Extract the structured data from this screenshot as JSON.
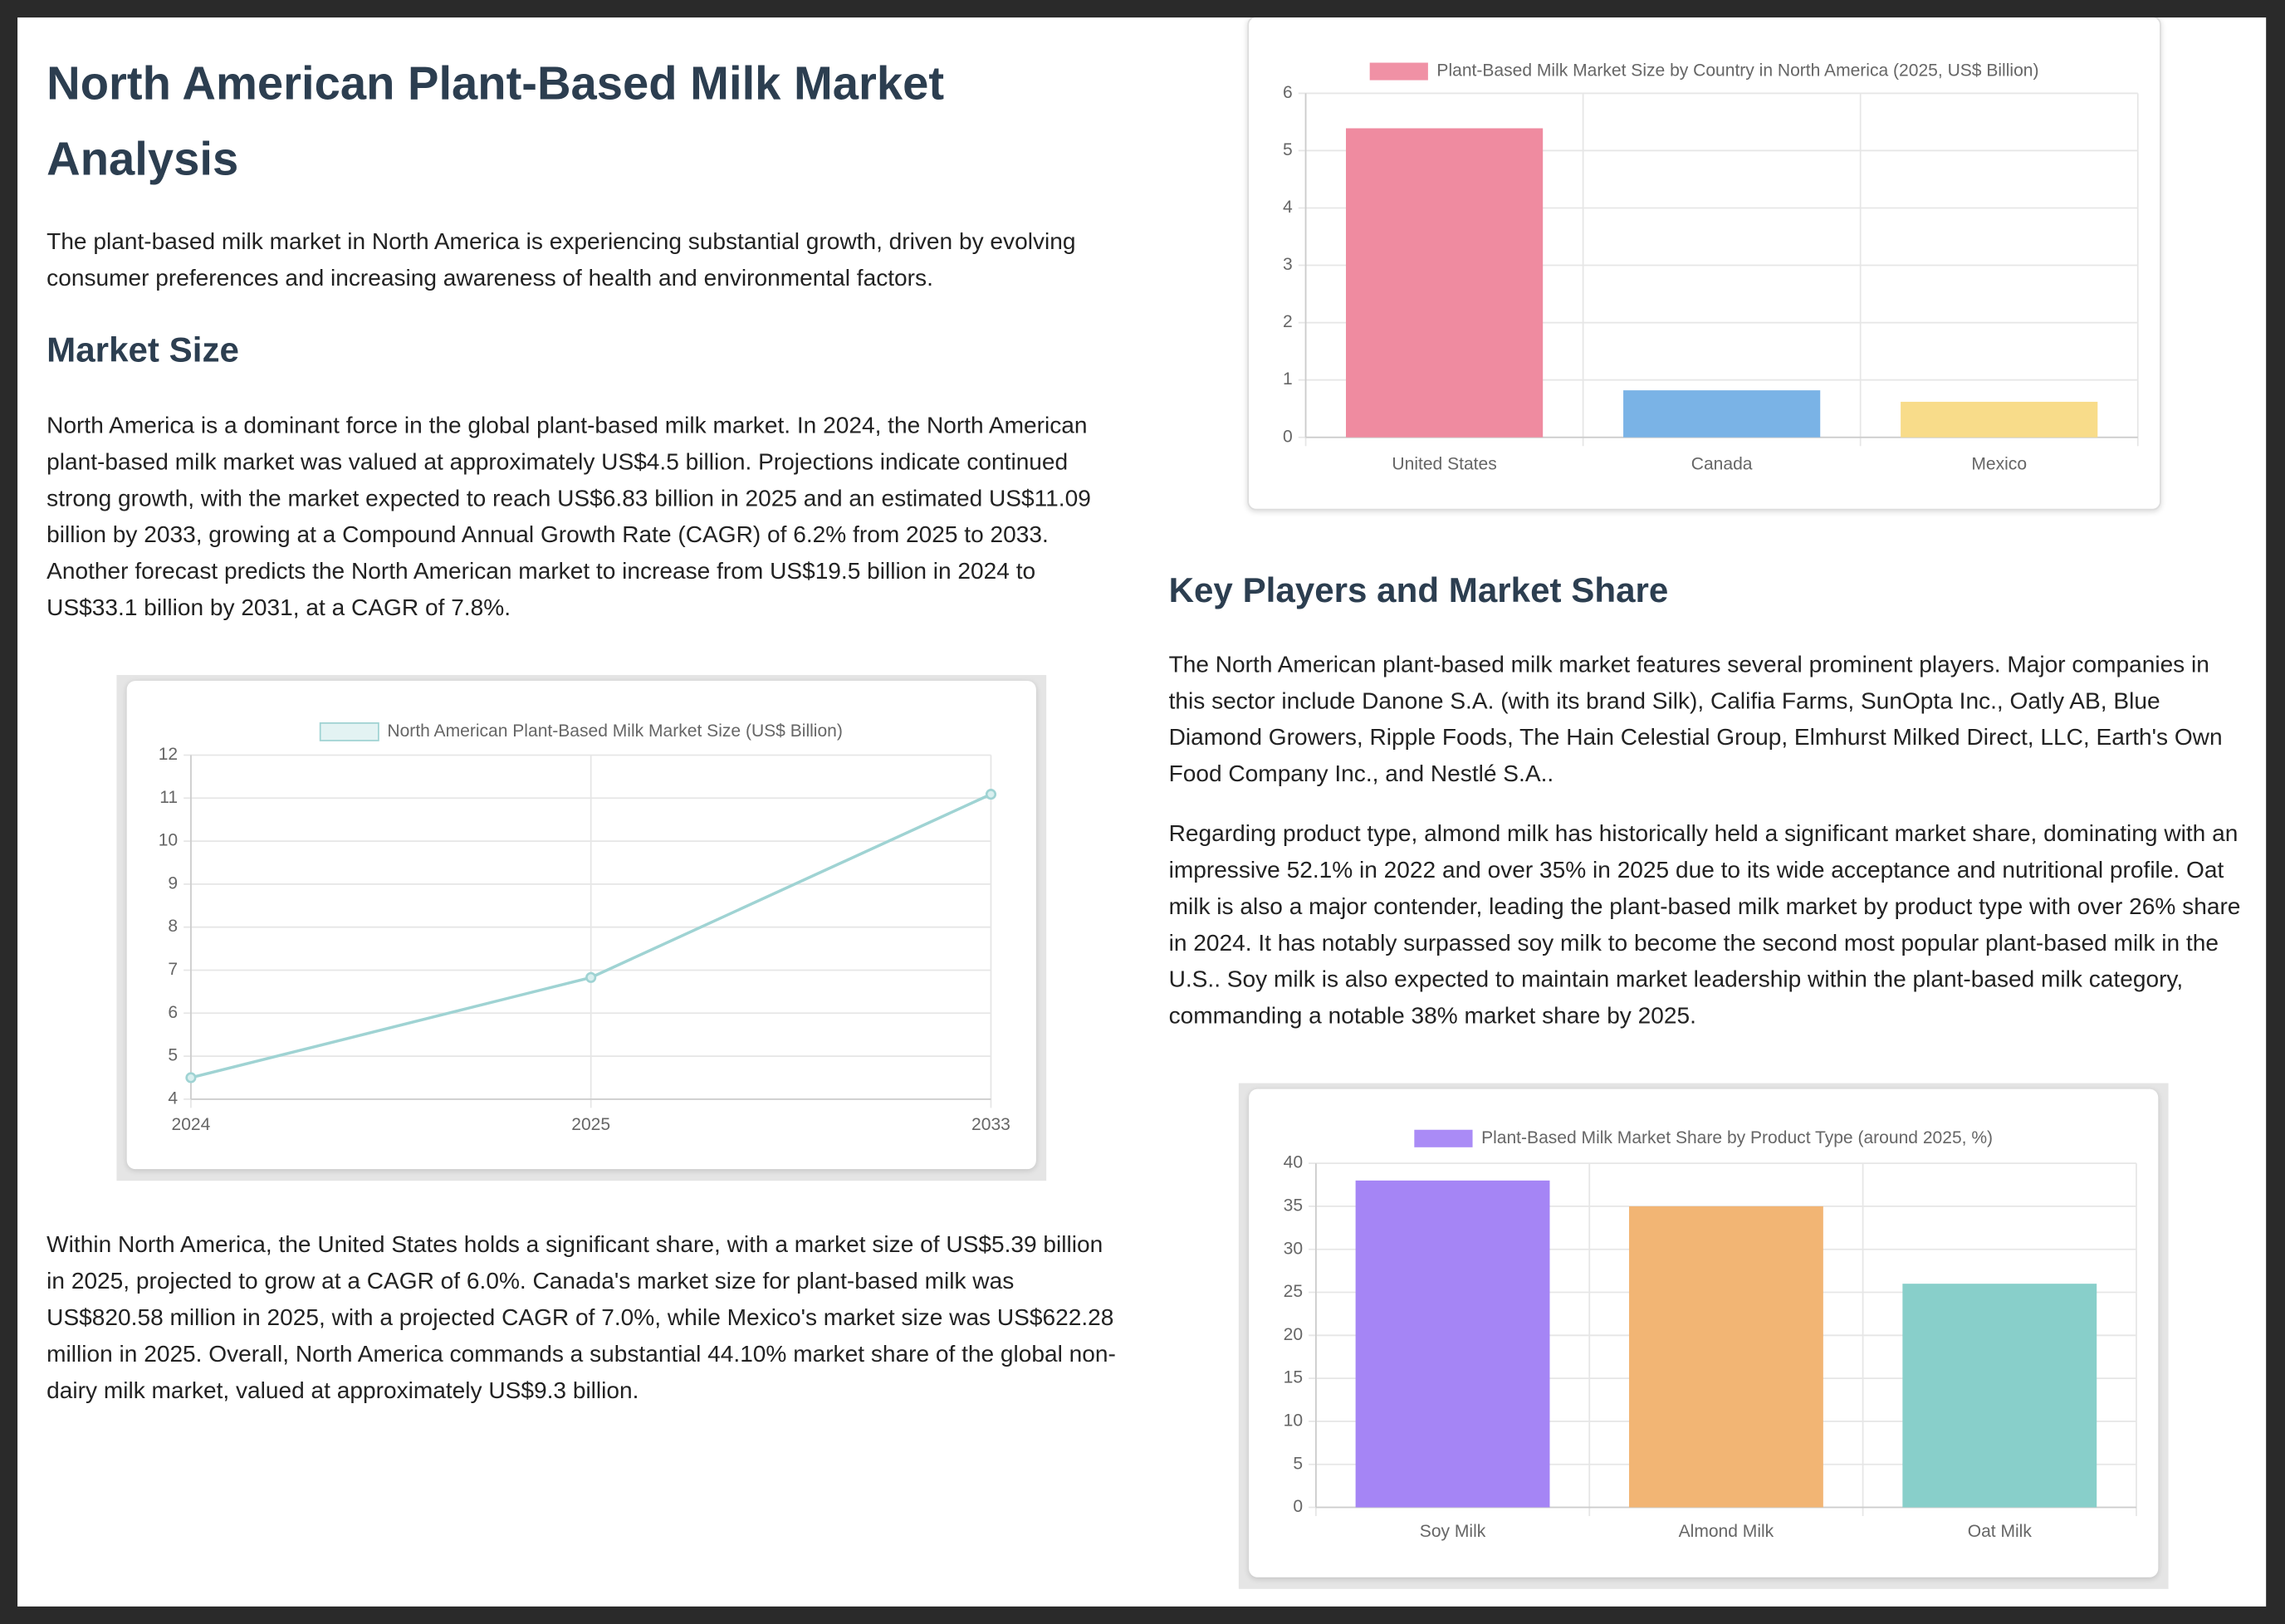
{
  "document": {
    "title": "North American Plant-Based Milk Market Analysis",
    "intro": "The plant-based milk market in North America is experiencing substantial growth, driven by evolving consumer preferences and increasing awareness of health and environmental factors.",
    "sections": [
      {
        "heading": "Market Size",
        "paragraphs": [
          "North America is a dominant force in the global plant-based milk market. In 2024, the North American plant-based milk market was valued at approximately US$4.5 billion. Projections indicate continued strong growth, with the market expected to reach US$6.83 billion in 2025 and an estimated US$11.09 billion by 2033, growing at a Compound Annual Growth Rate (CAGR) of 6.2% from 2025 to 2033. Another forecast predicts the North American market to increase from US$19.5 billion in 2024 to US$33.1 billion by 2031, at a CAGR of 7.8%.",
          "Within North America, the United States holds a significant share, with a market size of US$5.39 billion in 2025, projected to grow at a CAGR of 6.0%. Canada's market size for plant-based milk was US$820.58 million in 2025, with a projected CAGR of 7.0%, while Mexico's market size was US$622.28 million in 2025. Overall, North America commands a substantial 44.10% market share of the global non-dairy milk market, valued at approximately US$9.3 billion."
        ]
      },
      {
        "heading": "Key Players and Market Share",
        "paragraphs": [
          "The North American plant-based milk market features several prominent players. Major companies in this sector include Danone S.A. (with its brand Silk), Califia Farms, SunOpta Inc., Oatly AB, Blue Diamond Growers, Ripple Foods, The Hain Celestial Group, Elmhurst Milked Direct, LLC, Earth's Own Food Company Inc., and Nestlé S.A..",
          "Regarding product type, almond milk has historically held a significant market share, dominating with an impressive 52.1% in 2022 and over 35% in 2025 due to its wide acceptance and nutritional profile. Oat milk is also a major contender, leading the plant-based milk market by product type with over 26% share in 2024. It has notably surpassed soy milk to become the second most popular plant-based milk in the U.S.. Soy milk is also expected to maintain market leadership within the plant-based milk category, commanding a notable 38% market share by 2025."
        ]
      }
    ]
  },
  "chart_data": [
    {
      "type": "line",
      "categories": [
        "2024",
        "2025",
        "2033"
      ],
      "series": [
        {
          "name": "North American Plant-Based Milk Market Size (US$ Billion)",
          "color": "#9fd3d3",
          "values": [
            4.5,
            6.83,
            11.09
          ]
        }
      ],
      "ylim": [
        4,
        12
      ],
      "yticks": [
        4,
        5,
        6,
        7,
        8,
        9,
        10,
        11,
        12
      ],
      "grid": true
    },
    {
      "type": "bar",
      "categories": [
        "United States",
        "Canada",
        "Mexico"
      ],
      "series": [
        {
          "name": "Plant-Based Milk Market Size by Country in North America (2025, US$ Billion)",
          "colors": [
            "#ef8ba0",
            "#7ab3e6",
            "#f8dc8a"
          ],
          "values": [
            5.39,
            0.82,
            0.62
          ]
        }
      ],
      "ylim": [
        0,
        6
      ],
      "yticks": [
        0,
        1,
        2,
        3,
        4,
        5,
        6
      ],
      "grid": true
    },
    {
      "type": "bar",
      "categories": [
        "Soy Milk",
        "Almond Milk",
        "Oat Milk"
      ],
      "series": [
        {
          "name": "Plant-Based Milk Market Share by Product Type (around 2025, %)",
          "colors": [
            "#a585f5",
            "#f2b574",
            "#88cfca"
          ],
          "values": [
            38,
            35,
            26
          ]
        }
      ],
      "ylim": [
        0,
        40
      ],
      "yticks": [
        0,
        5,
        10,
        15,
        20,
        25,
        30,
        35,
        40
      ],
      "grid": true
    }
  ]
}
